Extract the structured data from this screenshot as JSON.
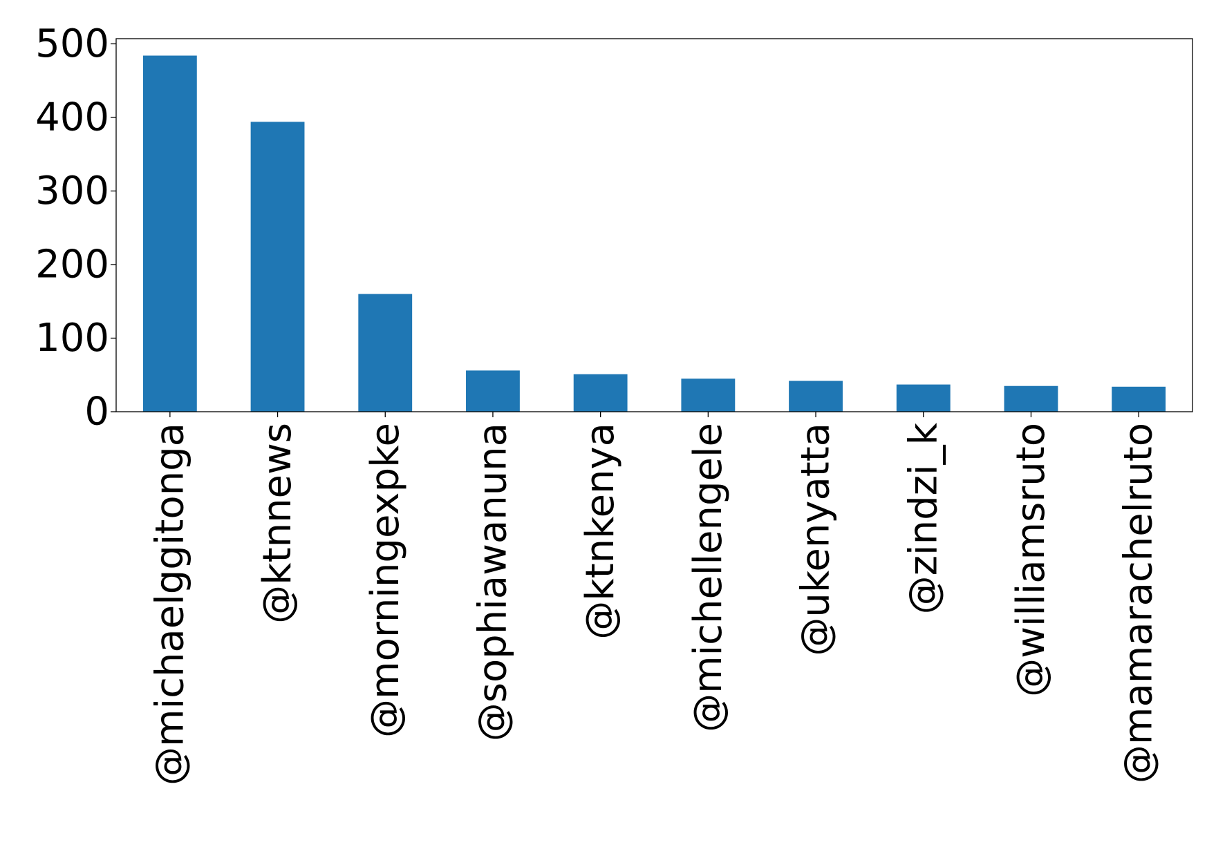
{
  "chart_data": {
    "type": "bar",
    "title": "",
    "xlabel": "",
    "ylabel": "",
    "categories": [
      "@michaelggitonga",
      "@ktnnews",
      "@morningexpke",
      "@sophiawanuna",
      "@ktnkenya",
      "@michellengele",
      "@ukenyatta",
      "@zindzi_k",
      "@williamsruto",
      "@mamarachelruto"
    ],
    "values": [
      484,
      394,
      160,
      56,
      51,
      45,
      42,
      37,
      35,
      34
    ],
    "ylim": [
      0,
      507
    ],
    "yticks": [
      0,
      100,
      200,
      300,
      400,
      500
    ],
    "grid": false,
    "legend": false,
    "bar_color": "#1f77b4"
  }
}
